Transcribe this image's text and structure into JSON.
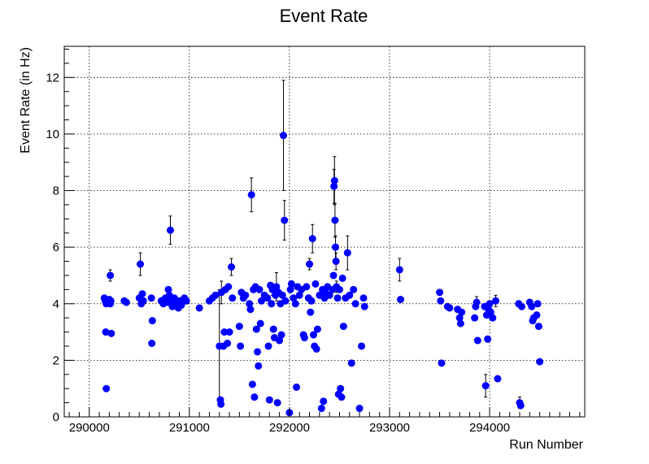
{
  "chart_data": {
    "type": "scatter",
    "title": "Event Rate",
    "xlabel": "Run Number",
    "ylabel": "Event Rate (in Hz)",
    "xlim": [
      289750,
      294950
    ],
    "ylim": [
      0,
      13.1
    ],
    "xticks": [
      290000,
      291000,
      292000,
      293000,
      294000
    ],
    "yticks": [
      0,
      2,
      4,
      6,
      8,
      10,
      12
    ],
    "grid": true,
    "marker_color": "#0000ff",
    "series": [
      {
        "points": [
          {
            "x": 290150,
            "y": 4.2,
            "err": 0.1
          },
          {
            "x": 290160,
            "y": 4.1,
            "err": 0.1
          },
          {
            "x": 290170,
            "y": 4.0,
            "err": 0.1
          },
          {
            "x": 290165,
            "y": 3.0,
            "err": 0.1
          },
          {
            "x": 290170,
            "y": 1.0,
            "err": 0.08
          },
          {
            "x": 290200,
            "y": 4.15,
            "err": 0.1
          },
          {
            "x": 290210,
            "y": 5.0,
            "err": 0.2
          },
          {
            "x": 290215,
            "y": 4.1,
            "err": 0.1
          },
          {
            "x": 290220,
            "y": 2.95,
            "err": 0.1
          },
          {
            "x": 290210,
            "y": 4.0,
            "err": 0.1
          },
          {
            "x": 290350,
            "y": 4.1,
            "err": 0.1
          },
          {
            "x": 290370,
            "y": 4.05,
            "err": 0.1
          },
          {
            "x": 290500,
            "y": 4.2,
            "err": 0.1
          },
          {
            "x": 290510,
            "y": 5.4,
            "err": 0.4
          },
          {
            "x": 290520,
            "y": 4.0,
            "err": 0.1
          },
          {
            "x": 290530,
            "y": 4.35,
            "err": 0.1
          },
          {
            "x": 290540,
            "y": 4.1,
            "err": 0.1
          },
          {
            "x": 290620,
            "y": 4.2,
            "err": 0.1
          },
          {
            "x": 290630,
            "y": 3.4,
            "err": 0.1
          },
          {
            "x": 290625,
            "y": 2.6,
            "err": 0.1
          },
          {
            "x": 290720,
            "y": 4.1,
            "err": 0.1
          },
          {
            "x": 290740,
            "y": 4.0,
            "err": 0.1
          },
          {
            "x": 290760,
            "y": 4.2,
            "err": 0.1
          },
          {
            "x": 290780,
            "y": 4.05,
            "err": 0.1
          },
          {
            "x": 290790,
            "y": 4.5,
            "err": 0.1
          },
          {
            "x": 290800,
            "y": 4.3,
            "err": 0.1
          },
          {
            "x": 290810,
            "y": 6.6,
            "err": 0.5
          },
          {
            "x": 290820,
            "y": 4.1,
            "err": 0.1
          },
          {
            "x": 290830,
            "y": 3.9,
            "err": 0.1
          },
          {
            "x": 290850,
            "y": 4.2,
            "err": 0.1
          },
          {
            "x": 290870,
            "y": 4.0,
            "err": 0.1
          },
          {
            "x": 290890,
            "y": 3.85,
            "err": 0.1
          },
          {
            "x": 290900,
            "y": 4.1,
            "err": 0.1
          },
          {
            "x": 290920,
            "y": 3.95,
            "err": 0.1
          },
          {
            "x": 290950,
            "y": 4.2,
            "err": 0.1
          },
          {
            "x": 290970,
            "y": 4.1,
            "err": 0.1
          },
          {
            "x": 291100,
            "y": 3.85,
            "err": 0.1
          },
          {
            "x": 291200,
            "y": 4.1,
            "err": 0.1
          },
          {
            "x": 291230,
            "y": 4.2,
            "err": 0.1
          },
          {
            "x": 291260,
            "y": 4.3,
            "err": 0.1
          },
          {
            "x": 291300,
            "y": 2.5,
            "err": 2.0
          },
          {
            "x": 291310,
            "y": 0.6,
            "err": 0.1
          },
          {
            "x": 291315,
            "y": 0.45,
            "err": 0.1
          },
          {
            "x": 291320,
            "y": 4.4,
            "err": 0.4
          },
          {
            "x": 291340,
            "y": 2.5,
            "err": 0.1
          },
          {
            "x": 291350,
            "y": 3.0,
            "err": 0.1
          },
          {
            "x": 291360,
            "y": 4.5,
            "err": 0.1
          },
          {
            "x": 291380,
            "y": 2.6,
            "err": 0.1
          },
          {
            "x": 291390,
            "y": 4.6,
            "err": 0.1
          },
          {
            "x": 291400,
            "y": 3.0,
            "err": 0.1
          },
          {
            "x": 291420,
            "y": 5.3,
            "err": 0.3
          },
          {
            "x": 291430,
            "y": 4.2,
            "err": 0.1
          },
          {
            "x": 291500,
            "y": 3.2,
            "err": 0.1
          },
          {
            "x": 291510,
            "y": 2.5,
            "err": 0.1
          },
          {
            "x": 291520,
            "y": 4.4,
            "err": 0.1
          },
          {
            "x": 291540,
            "y": 4.2,
            "err": 0.1
          },
          {
            "x": 291560,
            "y": 4.3,
            "err": 0.1
          },
          {
            "x": 291600,
            "y": 4.0,
            "err": 0.1
          },
          {
            "x": 291610,
            "y": 3.8,
            "err": 0.1
          },
          {
            "x": 291620,
            "y": 7.85,
            "err": 0.6
          },
          {
            "x": 291630,
            "y": 1.15,
            "err": 0.1
          },
          {
            "x": 291640,
            "y": 4.5,
            "err": 0.1
          },
          {
            "x": 291650,
            "y": 0.7,
            "err": 0.1
          },
          {
            "x": 291660,
            "y": 4.6,
            "err": 0.1
          },
          {
            "x": 291670,
            "y": 3.1,
            "err": 0.1
          },
          {
            "x": 291680,
            "y": 2.3,
            "err": 0.1
          },
          {
            "x": 291690,
            "y": 1.8,
            "err": 0.1
          },
          {
            "x": 291700,
            "y": 4.5,
            "err": 0.1
          },
          {
            "x": 291710,
            "y": 3.3,
            "err": 0.1
          },
          {
            "x": 291720,
            "y": 4.1,
            "err": 0.1
          },
          {
            "x": 291750,
            "y": 4.3,
            "err": 0.1
          },
          {
            "x": 291780,
            "y": 4.2,
            "err": 0.1
          },
          {
            "x": 291790,
            "y": 2.5,
            "err": 0.1
          },
          {
            "x": 291800,
            "y": 0.6,
            "err": 0.1
          },
          {
            "x": 291810,
            "y": 4.65,
            "err": 0.1
          },
          {
            "x": 291820,
            "y": 4.0,
            "err": 0.1
          },
          {
            "x": 291830,
            "y": 4.5,
            "err": 0.2
          },
          {
            "x": 291840,
            "y": 3.1,
            "err": 0.1
          },
          {
            "x": 291850,
            "y": 2.8,
            "err": 0.1
          },
          {
            "x": 291860,
            "y": 4.3,
            "err": 0.1
          },
          {
            "x": 291870,
            "y": 4.6,
            "err": 0.5
          },
          {
            "x": 291880,
            "y": 0.5,
            "err": 0.1
          },
          {
            "x": 291890,
            "y": 4.4,
            "err": 0.1
          },
          {
            "x": 291900,
            "y": 2.7,
            "err": 0.1
          },
          {
            "x": 291910,
            "y": 4.0,
            "err": 0.1
          },
          {
            "x": 291920,
            "y": 2.9,
            "err": 0.1
          },
          {
            "x": 291930,
            "y": 4.3,
            "err": 0.1
          },
          {
            "x": 291940,
            "y": 9.95,
            "err": 1.95
          },
          {
            "x": 291950,
            "y": 6.95,
            "err": 0.7
          },
          {
            "x": 291960,
            "y": 4.1,
            "err": 0.1
          },
          {
            "x": 292000,
            "y": 0.15,
            "err": 0.05
          },
          {
            "x": 292010,
            "y": 4.5,
            "err": 0.1
          },
          {
            "x": 292020,
            "y": 4.7,
            "err": 0.1
          },
          {
            "x": 292040,
            "y": 4.2,
            "err": 0.1
          },
          {
            "x": 292060,
            "y": 4.0,
            "err": 0.1
          },
          {
            "x": 292070,
            "y": 1.05,
            "err": 0.1
          },
          {
            "x": 292080,
            "y": 4.6,
            "err": 0.1
          },
          {
            "x": 292100,
            "y": 4.3,
            "err": 0.1
          },
          {
            "x": 292120,
            "y": 4.5,
            "err": 0.1
          },
          {
            "x": 292140,
            "y": 2.9,
            "err": 0.1
          },
          {
            "x": 292150,
            "y": 2.8,
            "err": 0.1
          },
          {
            "x": 292170,
            "y": 4.6,
            "err": 0.1
          },
          {
            "x": 292190,
            "y": 4.2,
            "err": 0.1
          },
          {
            "x": 292200,
            "y": 5.4,
            "err": 0.2
          },
          {
            "x": 292210,
            "y": 3.7,
            "err": 0.1
          },
          {
            "x": 292220,
            "y": 4.1,
            "err": 0.1
          },
          {
            "x": 292230,
            "y": 6.3,
            "err": 0.5
          },
          {
            "x": 292240,
            "y": 2.9,
            "err": 0.1
          },
          {
            "x": 292250,
            "y": 2.5,
            "err": 0.1
          },
          {
            "x": 292260,
            "y": 4.7,
            "err": 0.1
          },
          {
            "x": 292270,
            "y": 2.4,
            "err": 0.1
          },
          {
            "x": 292280,
            "y": 3.1,
            "err": 0.1
          },
          {
            "x": 292300,
            "y": 4.3,
            "err": 0.1
          },
          {
            "x": 292320,
            "y": 0.3,
            "err": 0.1
          },
          {
            "x": 292330,
            "y": 4.5,
            "err": 0.1
          },
          {
            "x": 292340,
            "y": 0.55,
            "err": 0.1
          },
          {
            "x": 292350,
            "y": 4.2,
            "err": 0.1
          },
          {
            "x": 292360,
            "y": 4.4,
            "err": 0.1
          },
          {
            "x": 292380,
            "y": 4.6,
            "err": 0.1
          },
          {
            "x": 292400,
            "y": 4.3,
            "err": 0.1
          },
          {
            "x": 292430,
            "y": 4.5,
            "err": 0.1
          },
          {
            "x": 292440,
            "y": 5.0,
            "err": 0.1
          },
          {
            "x": 292445,
            "y": 8.15,
            "err": 0.6
          },
          {
            "x": 292450,
            "y": 8.35,
            "err": 0.85
          },
          {
            "x": 292455,
            "y": 6.95,
            "err": 0.6
          },
          {
            "x": 292460,
            "y": 6.0,
            "err": 0.4
          },
          {
            "x": 292465,
            "y": 5.5,
            "err": 0.3
          },
          {
            "x": 292470,
            "y": 4.6,
            "err": 0.2
          },
          {
            "x": 292480,
            "y": 4.2,
            "err": 0.1
          },
          {
            "x": 292490,
            "y": 0.8,
            "err": 0.1
          },
          {
            "x": 292500,
            "y": 4.5,
            "err": 0.1
          },
          {
            "x": 292510,
            "y": 1.0,
            "err": 0.1
          },
          {
            "x": 292520,
            "y": 0.7,
            "err": 0.1
          },
          {
            "x": 292530,
            "y": 4.9,
            "err": 0.1
          },
          {
            "x": 292540,
            "y": 3.2,
            "err": 0.1
          },
          {
            "x": 292560,
            "y": 4.2,
            "err": 0.1
          },
          {
            "x": 292580,
            "y": 5.8,
            "err": 0.6
          },
          {
            "x": 292600,
            "y": 4.3,
            "err": 0.1
          },
          {
            "x": 292620,
            "y": 1.9,
            "err": 0.1
          },
          {
            "x": 292640,
            "y": 4.5,
            "err": 0.1
          },
          {
            "x": 292660,
            "y": 4.0,
            "err": 0.1
          },
          {
            "x": 292700,
            "y": 0.3,
            "err": 0.05
          },
          {
            "x": 292720,
            "y": 2.5,
            "err": 0.1
          },
          {
            "x": 292740,
            "y": 4.2,
            "err": 0.1
          },
          {
            "x": 292750,
            "y": 3.9,
            "err": 0.1
          },
          {
            "x": 293100,
            "y": 5.2,
            "err": 0.4
          },
          {
            "x": 293110,
            "y": 4.15,
            "err": 0.1
          },
          {
            "x": 293500,
            "y": 4.4,
            "err": 0.1
          },
          {
            "x": 293510,
            "y": 4.1,
            "err": 0.1
          },
          {
            "x": 293520,
            "y": 1.9,
            "err": 0.1
          },
          {
            "x": 293580,
            "y": 3.9,
            "err": 0.1
          },
          {
            "x": 293600,
            "y": 3.85,
            "err": 0.1
          },
          {
            "x": 293680,
            "y": 3.8,
            "err": 0.1
          },
          {
            "x": 293700,
            "y": 3.5,
            "err": 0.1
          },
          {
            "x": 293710,
            "y": 3.3,
            "err": 0.1
          },
          {
            "x": 293720,
            "y": 3.7,
            "err": 0.1
          },
          {
            "x": 293850,
            "y": 3.5,
            "err": 0.1
          },
          {
            "x": 293860,
            "y": 3.9,
            "err": 0.1
          },
          {
            "x": 293870,
            "y": 4.05,
            "err": 0.2
          },
          {
            "x": 293880,
            "y": 2.7,
            "err": 0.1
          },
          {
            "x": 293950,
            "y": 3.9,
            "err": 0.1
          },
          {
            "x": 293960,
            "y": 1.1,
            "err": 0.4
          },
          {
            "x": 293970,
            "y": 3.6,
            "err": 0.1
          },
          {
            "x": 293980,
            "y": 2.75,
            "err": 0.1
          },
          {
            "x": 293990,
            "y": 3.8,
            "err": 0.1
          },
          {
            "x": 294000,
            "y": 4.0,
            "err": 0.1
          },
          {
            "x": 294010,
            "y": 3.7,
            "err": 0.1
          },
          {
            "x": 294030,
            "y": 3.5,
            "err": 0.1
          },
          {
            "x": 294060,
            "y": 4.1,
            "err": 0.2
          },
          {
            "x": 294080,
            "y": 1.35,
            "err": 0.1
          },
          {
            "x": 294290,
            "y": 4.0,
            "err": 0.1
          },
          {
            "x": 294300,
            "y": 0.5,
            "err": 0.2
          },
          {
            "x": 294310,
            "y": 0.4,
            "err": 0.1
          },
          {
            "x": 294320,
            "y": 3.9,
            "err": 0.1
          },
          {
            "x": 294400,
            "y": 4.05,
            "err": 0.1
          },
          {
            "x": 294420,
            "y": 3.9,
            "err": 0.1
          },
          {
            "x": 294430,
            "y": 3.4,
            "err": 0.1
          },
          {
            "x": 294440,
            "y": 3.5,
            "err": 0.1
          },
          {
            "x": 294470,
            "y": 3.6,
            "err": 0.1
          },
          {
            "x": 294480,
            "y": 4.0,
            "err": 0.1
          },
          {
            "x": 294490,
            "y": 3.2,
            "err": 0.1
          },
          {
            "x": 294500,
            "y": 1.95,
            "err": 0.1
          }
        ]
      }
    ]
  }
}
